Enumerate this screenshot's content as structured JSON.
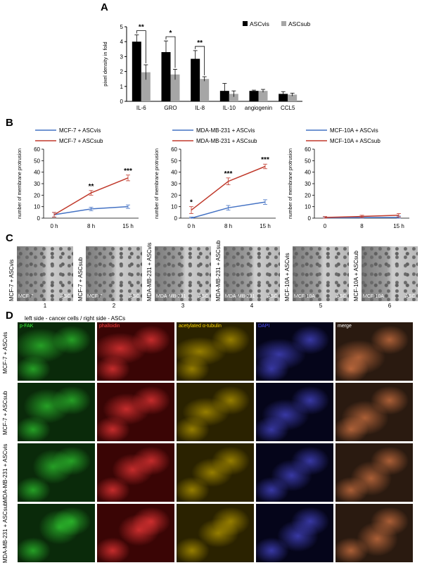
{
  "panel_letters": {
    "a": "A",
    "b": "B",
    "c": "C",
    "d": "D"
  },
  "chart_data": [
    {
      "type": "bar",
      "categories": [
        "IL-6",
        "GRO",
        "IL-8",
        "IL-10",
        "angiogenin",
        "CCL5"
      ],
      "series": [
        {
          "name": "ASCvis",
          "values": [
            4.0,
            3.3,
            2.85,
            0.7,
            0.7,
            0.5
          ],
          "errors": [
            0.45,
            0.75,
            0.55,
            0.5,
            0.05,
            0.15
          ],
          "color": "#000000"
        },
        {
          "name": "ASCsub",
          "values": [
            1.95,
            1.8,
            1.5,
            0.5,
            0.7,
            0.45
          ],
          "errors": [
            0.5,
            0.35,
            0.15,
            0.2,
            0.1,
            0.1
          ],
          "color": "#a6a6a6"
        }
      ],
      "ylabel": "pixel density in fold",
      "ylim": [
        0,
        5
      ],
      "yticks": [
        "0",
        "1",
        "2",
        "3",
        "4",
        "5"
      ],
      "significance": [
        "**",
        "*",
        "**"
      ],
      "legend_position": "top-right"
    },
    {
      "type": "line",
      "x": [
        "0 h",
        "8 h",
        "15 h"
      ],
      "series": [
        {
          "name": "MCF-7 + ASCvis",
          "values": [
            3,
            8,
            10
          ],
          "errors": [
            2,
            1.5,
            1.5
          ],
          "color": "#4472c4"
        },
        {
          "name": "MCF-7 + ASCsub",
          "values": [
            3,
            22,
            35
          ],
          "errors": [
            2,
            2,
            2.5
          ],
          "color": "#c0392b"
        }
      ],
      "ylabel": "number of membrane protrusion",
      "ylim": [
        0,
        60
      ],
      "yticks": [
        "0",
        "10",
        "20",
        "30",
        "40",
        "50",
        "60"
      ],
      "significance": [
        "",
        "**",
        "***"
      ]
    },
    {
      "type": "line",
      "x": [
        "0 h",
        "8 h",
        "15 h"
      ],
      "series": [
        {
          "name": "MDA-MB-231 + ASCvis",
          "values": [
            0,
            9,
            14
          ],
          "errors": [
            1,
            2,
            2
          ],
          "color": "#4472c4"
        },
        {
          "name": "MDA-MB-231 + ASCsub",
          "values": [
            7,
            32,
            45
          ],
          "errors": [
            3,
            3,
            2
          ],
          "color": "#c0392b"
        }
      ],
      "ylabel": "number of membrane protrusion",
      "ylim": [
        0,
        60
      ],
      "yticks": [
        "0",
        "10",
        "20",
        "30",
        "40",
        "50",
        "60"
      ],
      "significance": [
        "*",
        "***",
        "***"
      ]
    },
    {
      "type": "line",
      "x": [
        "0",
        "8",
        "15 h"
      ],
      "series": [
        {
          "name": "MCF-10A + ASCvis",
          "values": [
            0.3,
            0.5,
            0.6
          ],
          "errors": [
            0.8,
            1,
            1.2
          ],
          "color": "#4472c4"
        },
        {
          "name": "MCF-10A + ASCsub",
          "values": [
            0.6,
            1.5,
            2.5
          ],
          "errors": [
            0.8,
            1,
            1.5
          ],
          "color": "#c0392b"
        }
      ],
      "ylabel": "number of membrane protrusion",
      "ylim": [
        0,
        60
      ],
      "yticks": [
        "0",
        "10",
        "20",
        "30",
        "40",
        "50",
        "60"
      ],
      "significance": [
        "",
        "",
        ""
      ]
    }
  ],
  "panel_c": {
    "images": [
      {
        "side": "MCF-7 + ASCvis",
        "left": "MCF-7",
        "right": "ASC",
        "number": "1"
      },
      {
        "side": "MCF-7 + ASCsub",
        "left": "MCF-7",
        "right": "ASC",
        "number": "2"
      },
      {
        "side": "MDA-MB-231 + ASCvis",
        "left": "MDA-MB-231",
        "right": "ASC",
        "number": "3"
      },
      {
        "side": "MDA-MB-231 + ASCsub",
        "left": "MDA-MB-231",
        "right": "ASC",
        "number": "4"
      },
      {
        "side": "MCF-10A + ASCvis",
        "left": "MCF-10A",
        "right": "ASC",
        "number": "5"
      },
      {
        "side": "MCF-10A + ASCsub",
        "left": "MCF-10A",
        "right": "ASC",
        "number": "6"
      }
    ]
  },
  "panel_d": {
    "header": "left side - cancer cells / right side - ASCs",
    "channels": [
      {
        "label": "p-FAK",
        "color": "#3cff3c"
      },
      {
        "label": "phalloidin",
        "color": "#ff4040"
      },
      {
        "label": "acetylated α-tubulin",
        "color": "#ffd700"
      },
      {
        "label": "DAPI",
        "color": "#5050ff"
      },
      {
        "label": "merge",
        "color": "#ffffff"
      }
    ],
    "rows": [
      "MCF-7 + ASCvis",
      "MCF-7 + ASCsub",
      "MDA-MB-231 + ASCvis",
      "MDA-MB-231 + ASCsub"
    ]
  }
}
